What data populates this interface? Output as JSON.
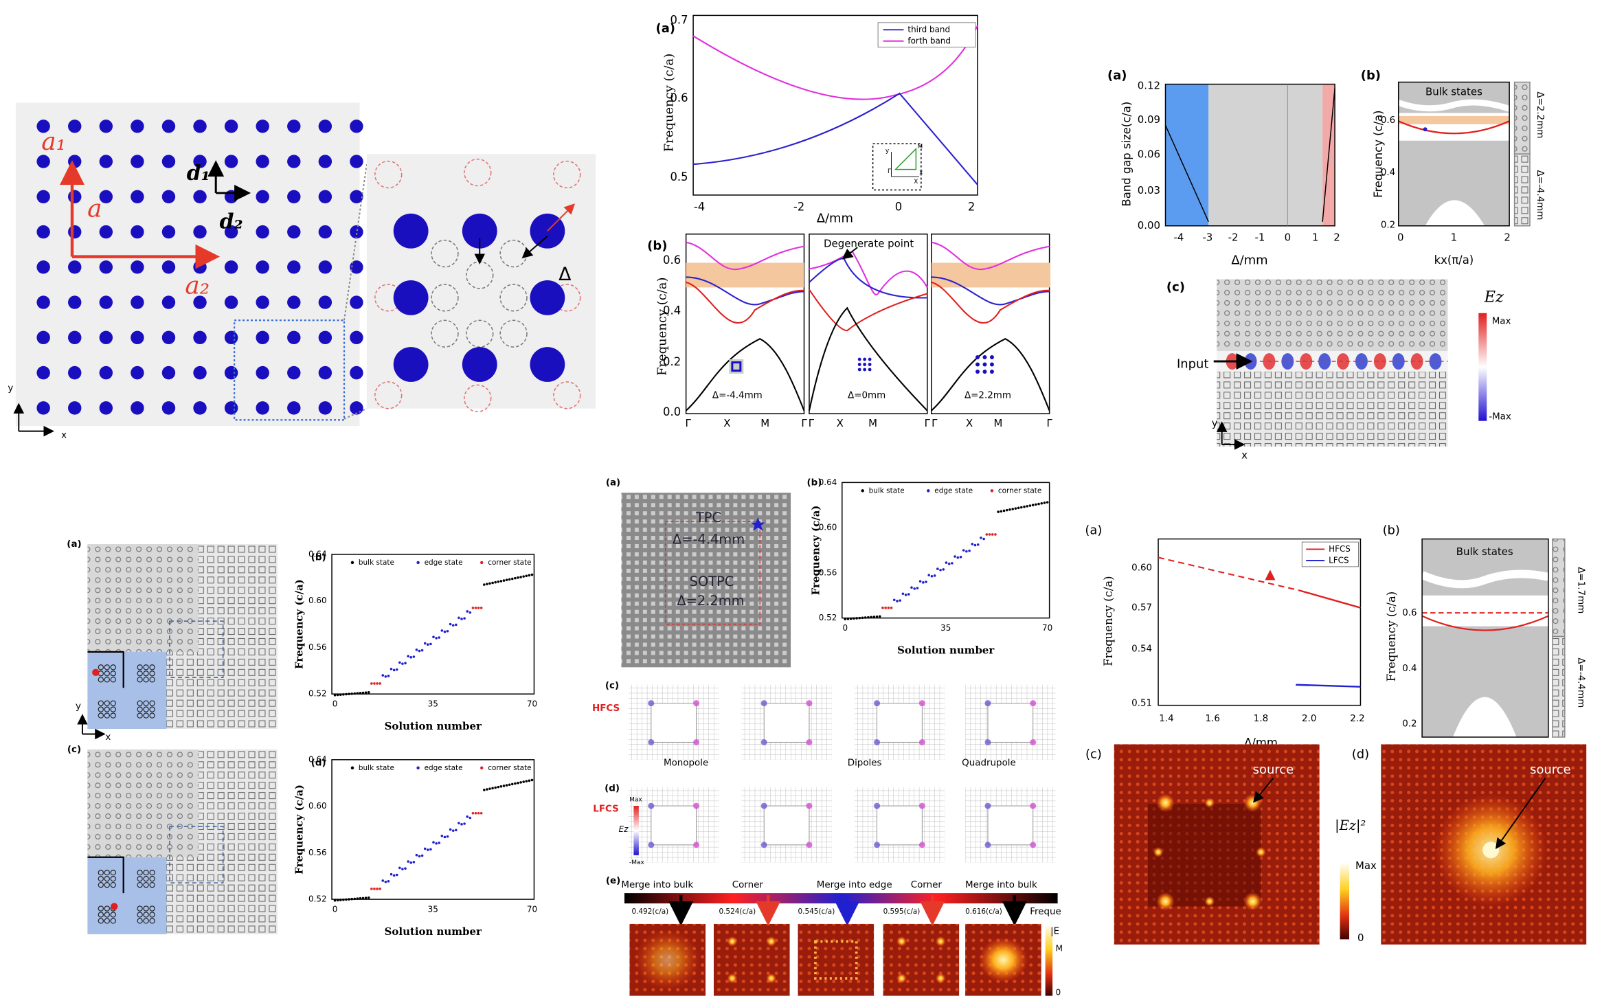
{
  "lattice": {
    "a1": "a₁",
    "a": "a",
    "a2": "a₂",
    "d1": "d₁",
    "d2": "d₂",
    "delta": "Δ",
    "y": "y",
    "x": "x"
  },
  "fig_top_mid": {
    "a": {
      "label": "(a)",
      "ylabel": "Frequency (c/a)",
      "xlabel": "Δ/mm",
      "yticks": [
        "0.5",
        "0.6",
        "0.7"
      ],
      "xticks": [
        "-4",
        "-2",
        "0",
        "2"
      ],
      "legend": [
        "third band",
        "forth band"
      ],
      "inset": [
        "y",
        "x",
        "M",
        "Γ",
        "X"
      ]
    },
    "b": {
      "label": "(b)",
      "ylabel": "Frequency (c/a)",
      "yticks": [
        "0.0",
        "0.2",
        "0.4",
        "0.6"
      ],
      "xticks": [
        "Γ",
        "X",
        "M",
        "Γ",
        "Γ",
        "X",
        "M",
        "Γ",
        "Γ",
        "X",
        "M",
        "Γ"
      ],
      "annotation": "Degenerate point",
      "cases": [
        "Δ=-4.4mm",
        "Δ=0mm",
        "Δ=2.2mm"
      ]
    }
  },
  "fig_top_right": {
    "a": {
      "label": "(a)",
      "ylabel": "Band gap size(c/a)",
      "yticks": [
        "0.00",
        "0.03",
        "0.06",
        "0.09",
        "0.12"
      ],
      "xticks": [
        "-4",
        "-3",
        "-2",
        "-1",
        "0",
        "1",
        "2"
      ],
      "xlabel": "Δ/mm"
    },
    "b": {
      "label": "(b)",
      "region": "Bulk states",
      "ylabel": "Frequency (c/a)",
      "yticks": [
        "0.6",
        "0.4",
        "0.2"
      ],
      "xticks": [
        "0",
        "1",
        "2"
      ],
      "xlabel": "kx(π/a)",
      "side": [
        "Δ=2.2mm",
        "Δ=-4.4mm"
      ]
    },
    "c": {
      "label": "(c)",
      "field": "Ez",
      "max": "Max",
      "min": "-Max",
      "input": "Input",
      "axes": [
        "y",
        "x"
      ]
    }
  },
  "fig_bottom_left": {
    "labels": [
      "(a)",
      "(b)",
      "(c)",
      "(d)"
    ],
    "axes": [
      "y",
      "x"
    ],
    "b": {
      "legend": [
        "bulk state",
        "edge state",
        "corner state"
      ],
      "ylabel": "Frequency (c/a)",
      "yticks": [
        "0.64",
        "0.60",
        "0.56",
        "0.52"
      ],
      "xticks": [
        "0",
        "35",
        "70"
      ],
      "xlabel": "Solution number"
    },
    "d": {
      "legend": [
        "bulk state",
        "edge state",
        "corner state"
      ],
      "ylabel": "Frequency (c/a)",
      "yticks": [
        "0.64",
        "0.60",
        "0.56",
        "0.52"
      ],
      "xticks": [
        "0",
        "35",
        "70"
      ],
      "xlabel": "Solution number"
    }
  },
  "fig_bottom_mid": {
    "a": {
      "label": "(a)",
      "outer": "TPC",
      "outer_delta": "Δ=-4.4mm",
      "inner": "SOTPC",
      "inner_delta": "Δ=2.2mm"
    },
    "b": {
      "label": "(b)",
      "legend": [
        "bulk state",
        "edge state",
        "corner state"
      ],
      "ylabel": "Frequency (c/a)",
      "yticks": [
        "0.64",
        "0.60",
        "0.56",
        "0.52"
      ],
      "xticks": [
        "0",
        "35",
        "70"
      ],
      "xlabel": "Solution number"
    },
    "c": {
      "label": "(c)",
      "row": "HFCS"
    },
    "d": {
      "label": "(d)",
      "row": "LFCS",
      "modes": [
        "Monopole",
        "Dipoles",
        "Quadrupole"
      ],
      "colorbar": [
        "Max",
        "Ez",
        "-Max"
      ]
    },
    "e": {
      "label": "(e)",
      "stages": [
        "Merge into bulk",
        "Corner",
        "Merge into edge",
        "Corner",
        "Merge into bulk"
      ],
      "axis": "Freque",
      "freqs": [
        "0.492(c/a)",
        "0.524(c/a)",
        "0.545(c/a)",
        "0.595(c/a)",
        "0.616(c/a)"
      ],
      "colorbar": [
        "|E",
        "M",
        "0"
      ]
    }
  },
  "fig_bottom_right": {
    "a": {
      "label": "(a)",
      "legend": [
        "HFCS",
        "LFCS"
      ],
      "ylabel": "Frequency (c/a)",
      "yticks": [
        "0.60",
        "0.57",
        "0.54",
        "0.51"
      ],
      "xticks": [
        "1.4",
        "1.6",
        "1.8",
        "2.0",
        "2.2"
      ],
      "xlabel": "Δ/mm"
    },
    "b": {
      "label": "(b)",
      "region": "Bulk states",
      "ylabel": "Frequency (c/a)",
      "yticks": [
        "0.6",
        "0.4",
        "0.2"
      ],
      "xticks": [
        "0",
        "1",
        "2"
      ],
      "xlabel": "kx(π/a)",
      "side": [
        "Δ=1.7mm",
        "Δ=-4.4mm"
      ]
    },
    "c": {
      "label": "(c)",
      "source": "source",
      "colorbar": [
        "|Ez|²",
        "Max",
        "0"
      ]
    },
    "d": {
      "label": "(d)",
      "source": "source"
    }
  }
}
